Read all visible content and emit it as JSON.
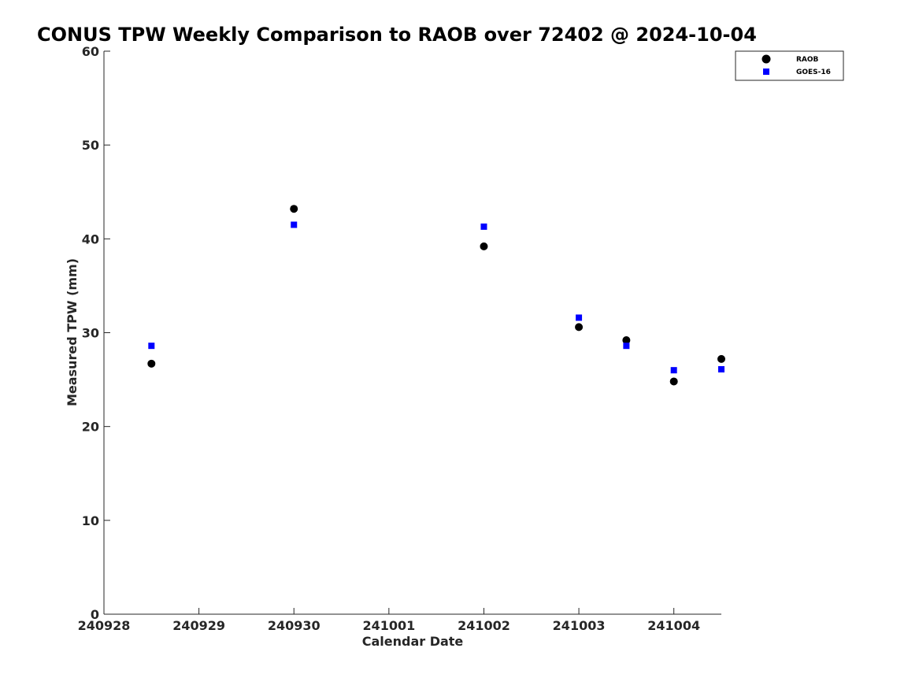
{
  "chart_data": {
    "type": "scatter",
    "title": "CONUS TPW Weekly Comparison to RAOB over 72402 @ 2024-10-04",
    "xlabel": "Calendar Date",
    "ylabel": "Measured TPW (mm)",
    "x_ticks": [
      "240928",
      "240929",
      "240930",
      "241001",
      "241002",
      "241003",
      "241004"
    ],
    "xlim": [
      "240928 00Z",
      "241004 12Z"
    ],
    "ylim": [
      0,
      60
    ],
    "y_ticks": [
      "0",
      "10",
      "20",
      "30",
      "40",
      "50",
      "60"
    ],
    "grid": false,
    "legend_position": "top-right",
    "series": [
      {
        "name": "RAOB",
        "marker": "circle",
        "color": "#000000",
        "x": [
          "240928 12Z",
          "240930 00Z",
          "241002 00Z",
          "241003 00Z",
          "241003 12Z",
          "241004 00Z",
          "241004 12Z"
        ],
        "y": [
          26.7,
          43.2,
          39.2,
          30.6,
          29.2,
          24.8,
          27.2
        ]
      },
      {
        "name": "GOES-16",
        "marker": "square",
        "color": "#0000ff",
        "x": [
          "240928 12Z",
          "240930 00Z",
          "241002 00Z",
          "241003 00Z",
          "241003 12Z",
          "241004 00Z",
          "241004 12Z"
        ],
        "y": [
          28.6,
          41.5,
          41.3,
          31.6,
          28.6,
          26.0,
          26.1
        ]
      }
    ]
  }
}
